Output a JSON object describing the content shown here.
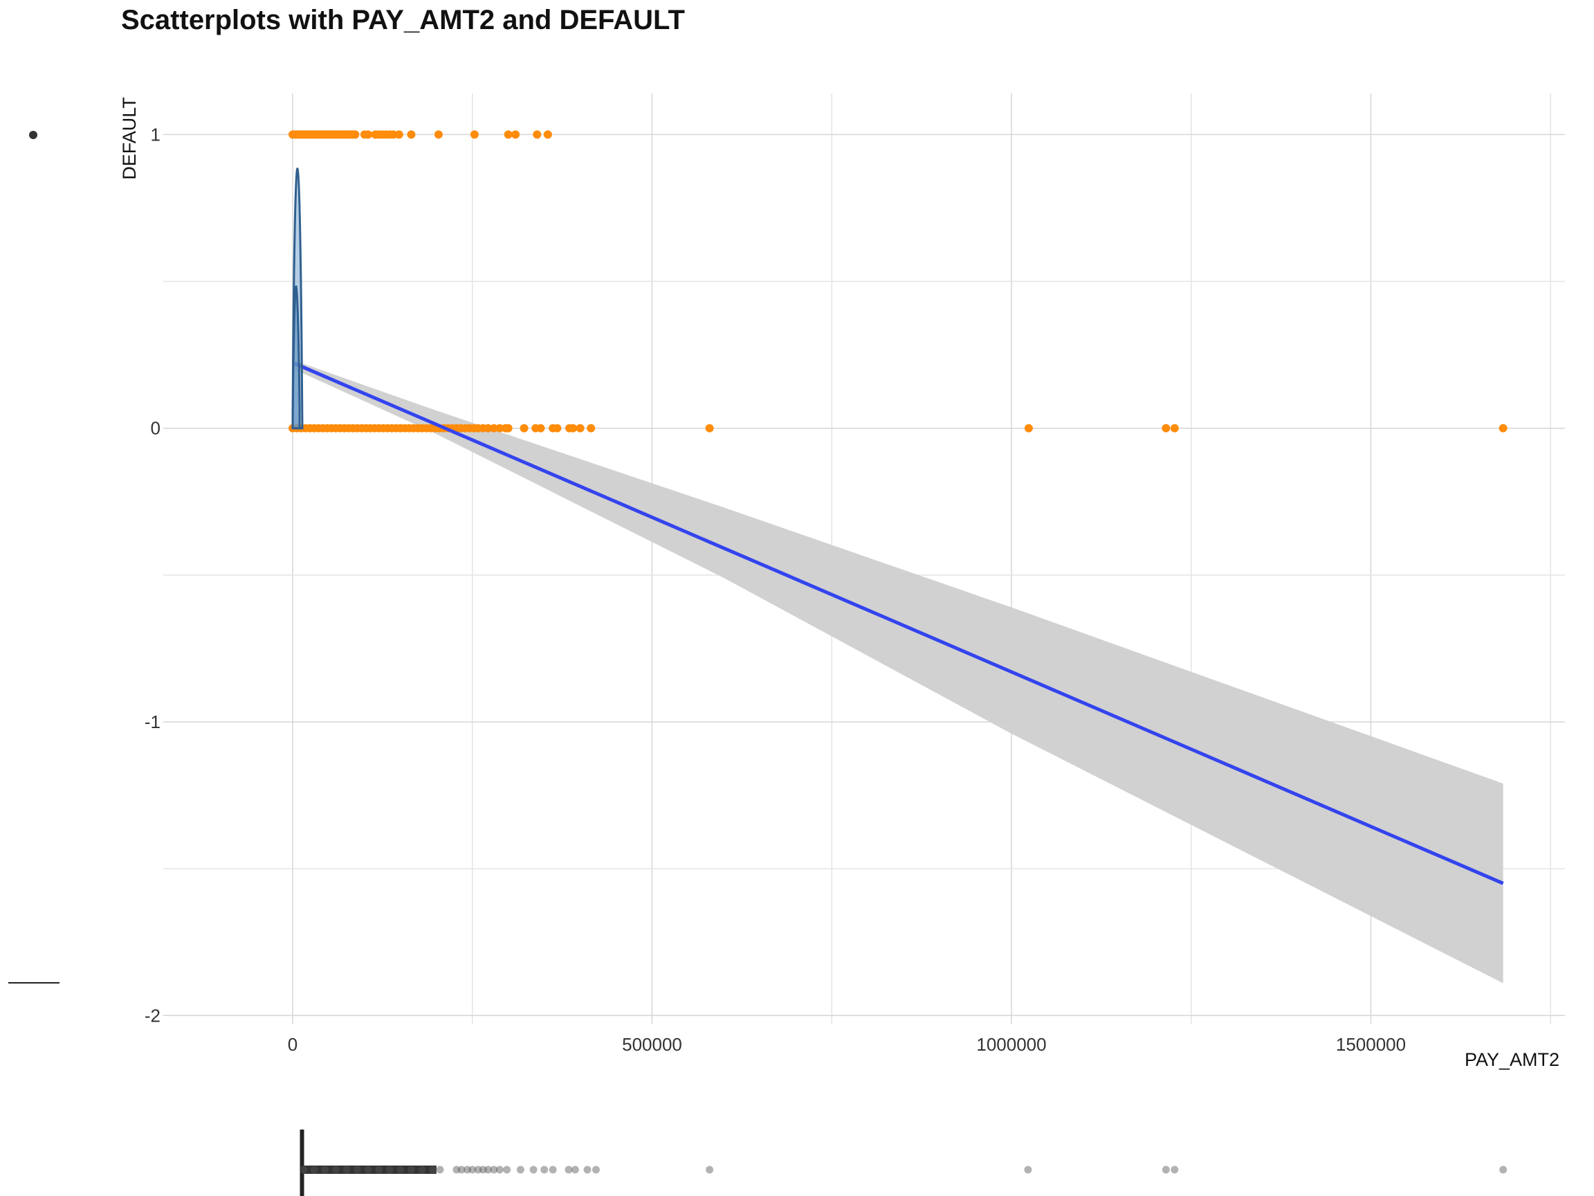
{
  "chart_data": {
    "type": "scatter",
    "title": "Scatterplots with PAY_AMT2 and DEFAULT",
    "xlabel": "PAY_AMT2",
    "ylabel": "DEFAULT",
    "xlim": [
      -180000,
      1770000
    ],
    "ylim": [
      -2.03,
      1.14
    ],
    "x_ticks": [
      0,
      500000,
      1000000,
      1500000
    ],
    "x_tick_labels": [
      "0",
      "500000",
      "1000000",
      "1500000"
    ],
    "y_ticks": [
      -2,
      -1,
      0,
      1
    ],
    "y_tick_labels": [
      "-2",
      "-1",
      "0",
      "1"
    ],
    "grid": true,
    "legend": "none",
    "colors": {
      "points": "#ff8c0a",
      "fit_line": "#3344ee",
      "confidence_band": "#cfcfcf",
      "density": "#2f5f8f",
      "boxplot_points": "#555555"
    },
    "series": [
      {
        "y": 1,
        "x": [
          0,
          3000,
          6000,
          9000,
          12000,
          15000,
          18000,
          21000,
          24000,
          27000,
          30000,
          33000,
          36000,
          39000,
          42000,
          45000,
          48000,
          51000,
          54000,
          57000,
          60000,
          63000,
          66000,
          69000,
          72000,
          75000,
          78000,
          81000,
          84000,
          87000,
          100000,
          105000,
          115000,
          120000,
          125000,
          130000,
          135000,
          140000,
          148000,
          165000,
          203000,
          253000,
          300000,
          310000,
          340000,
          355000
        ]
      },
      {
        "y": 0,
        "x": [
          0,
          6000,
          12000,
          18000,
          24000,
          30000,
          36000,
          42000,
          48000,
          54000,
          60000,
          66000,
          72000,
          78000,
          84000,
          90000,
          96000,
          102000,
          108000,
          114000,
          120000,
          126000,
          132000,
          138000,
          144000,
          150000,
          156000,
          162000,
          168000,
          174000,
          180000,
          186000,
          192000,
          198000,
          204000,
          210000,
          216000,
          222000,
          228000,
          234000,
          240000,
          246000,
          252000,
          258000,
          265000,
          272000,
          280000,
          288000,
          296000,
          300000,
          322000,
          338000,
          345000,
          362000,
          368000,
          385000,
          390000,
          400000,
          415000,
          580000,
          1024000,
          1215000,
          1227000,
          1684000
        ]
      }
    ],
    "fit_line": {
      "x": [
        3000,
        1684000
      ],
      "y": [
        0.22,
        -1.55
      ]
    },
    "confidence_band": {
      "x": [
        3000,
        200000,
        600000,
        1000000,
        1684000
      ],
      "upper": [
        0.23,
        0.06,
        -0.27,
        -0.61,
        -1.21
      ],
      "lower": [
        0.2,
        -0.02,
        -0.51,
        -1.04,
        -1.89
      ]
    },
    "boxplot": {
      "whisker_x": 13000,
      "outliers": [
        15000,
        30000,
        45000,
        60000,
        75000,
        90000,
        105000,
        120000,
        135000,
        150000,
        165000,
        180000,
        195000,
        205000,
        228000,
        235000,
        243000,
        250000,
        258000,
        265000,
        272000,
        280000,
        288000,
        298000,
        317000,
        335000,
        350000,
        362000,
        384000,
        393000,
        410000,
        422000,
        580000,
        1023000,
        1215000,
        1227000,
        1684000
      ]
    }
  }
}
